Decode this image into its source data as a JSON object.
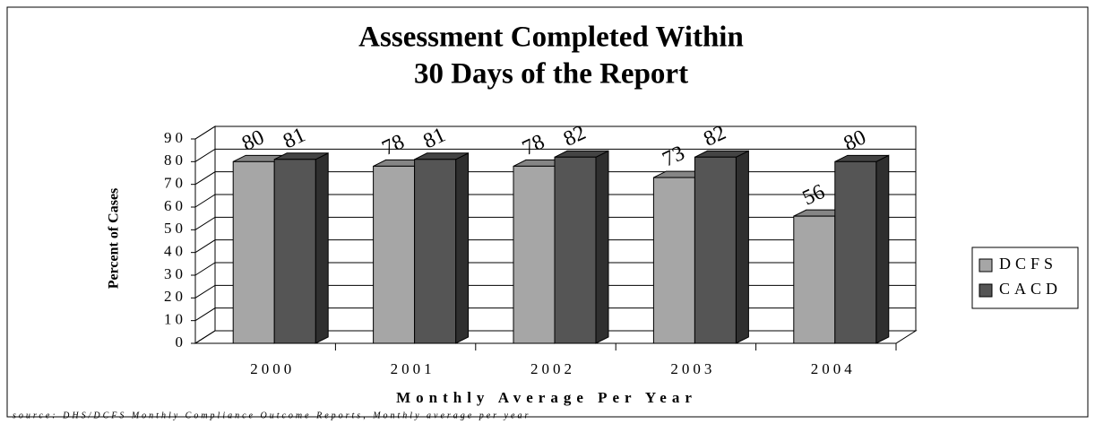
{
  "chart_data": {
    "type": "bar3d",
    "title": [
      "Assessment Completed Within",
      "30 Days of the Report"
    ],
    "categories": [
      "2000",
      "2001",
      "2002",
      "2003",
      "2004"
    ],
    "series": [
      {
        "name": "DCFS",
        "color": "#a6a6a6",
        "values": [
          80,
          78,
          78,
          73,
          56
        ]
      },
      {
        "name": "CACD",
        "color": "#555555",
        "values": [
          81,
          81,
          82,
          82,
          80
        ]
      }
    ],
    "ylim": [
      0,
      90
    ],
    "yticks": [
      0,
      10,
      20,
      30,
      40,
      50,
      60,
      70,
      80,
      90
    ],
    "ylabel": "Percent of Cases",
    "xlabel": "Monthly Average Per Year",
    "source": "source: DHS/DCFS Monthly Compliance Outcome Reports, Monthly average per year",
    "grid": true,
    "legend": "right"
  }
}
